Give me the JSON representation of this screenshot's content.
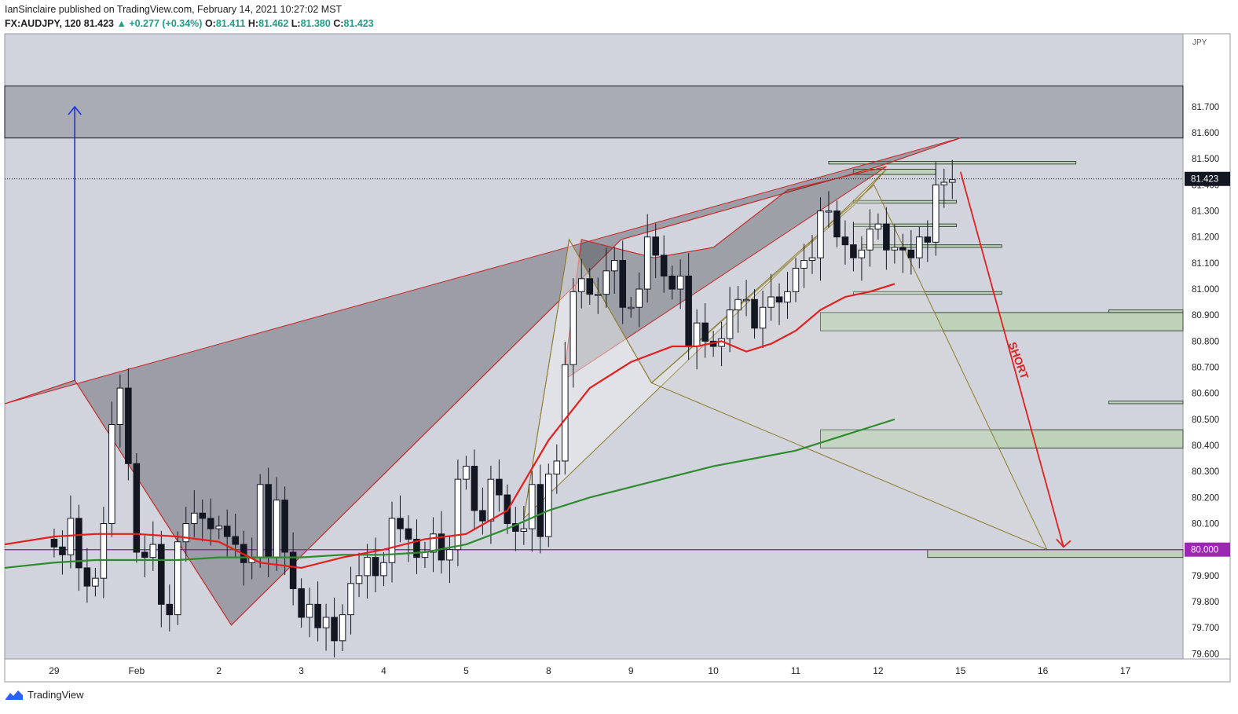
{
  "header": {
    "published": "IanSinclaire published on TradingView.com, February 14, 2021 10:27:02 MST",
    "symbol": "FX:AUDJPY, 120",
    "last": "81.423",
    "arrow": "▲",
    "change": "+0.277 (+0.34%)",
    "o_label": "O:",
    "o": "81.411",
    "h_label": "H:",
    "h": "81.462",
    "l_label": "L:",
    "l": "81.380",
    "c_label": "C:",
    "c": "81.423"
  },
  "footer": {
    "brand": "TradingView",
    "logo_icon": "tradingview-logo-icon"
  },
  "colors": {
    "background": "#d1d4dc",
    "up_candle": "#ffffff",
    "down_candle": "#131722",
    "ema_fast": "#e31f1f",
    "ema_slow": "#2e8b2e",
    "level_line": "#9c27b0",
    "target_arrow": "#e31f1f",
    "up_arrow": "#1a33e6",
    "zone_fill": "#b9d1b1"
  },
  "chart_data": {
    "type": "candlestick",
    "symbol": "FX:AUDJPY",
    "timeframe": "120",
    "ylabel": "JPY",
    "ylim": [
      79.58,
      81.98
    ],
    "yticks": [
      79.6,
      79.7,
      79.8,
      79.9,
      80.1,
      80.2,
      80.3,
      80.4,
      80.5,
      80.6,
      80.7,
      80.8,
      80.9,
      81.0,
      81.1,
      81.2,
      81.3,
      81.4,
      81.5,
      81.6,
      81.7
    ],
    "ytick_labels": [
      "79.600",
      "79.700",
      "79.800",
      "79.900",
      "80.100",
      "80.200",
      "80.300",
      "80.400",
      "80.500",
      "80.600",
      "80.700",
      "80.800",
      "80.900",
      "81.000",
      "81.100",
      "81.200",
      "81.300",
      "81.400",
      "81.500",
      "81.600",
      "81.700"
    ],
    "xlim": [
      -6,
      137
    ],
    "x_ticks": [
      {
        "label": "29",
        "x": 0
      },
      {
        "label": "Feb",
        "x": 10
      },
      {
        "label": "2",
        "x": 20
      },
      {
        "label": "3",
        "x": 30
      },
      {
        "label": "4",
        "x": 40
      },
      {
        "label": "5",
        "x": 50
      },
      {
        "label": "8",
        "x": 60
      },
      {
        "label": "9",
        "x": 70
      },
      {
        "label": "10",
        "x": 80
      },
      {
        "label": "11",
        "x": 90
      },
      {
        "label": "12",
        "x": 100
      },
      {
        "label": "15",
        "x": 110
      },
      {
        "label": "16",
        "x": 120
      },
      {
        "label": "17",
        "x": 130
      }
    ],
    "last_price": 81.423,
    "last_price_label": "81.423",
    "level": 80.0,
    "level_label": "80.000",
    "short_label": "SHORT",
    "candles_close": [
      80.01,
      79.98,
      80.12,
      79.93,
      79.86,
      79.89,
      80.1,
      80.48,
      80.62,
      80.33,
      79.99,
      79.97,
      80.02,
      79.79,
      79.75,
      80.03,
      80.1,
      80.14,
      80.12,
      80.08,
      80.09,
      80.05,
      80.02,
      79.95,
      79.97,
      80.25,
      79.97,
      80.19,
      79.99,
      79.85,
      79.74,
      79.79,
      79.7,
      79.74,
      79.65,
      79.75,
      79.87,
      79.9,
      79.97,
      79.9,
      79.95,
      80.12,
      80.08,
      80.04,
      79.97,
      79.99,
      80.06,
      79.96,
      80.0,
      80.27,
      80.32,
      80.15,
      80.11,
      80.27,
      80.21,
      80.1,
      80.07,
      80.08,
      80.25,
      80.05,
      80.29,
      80.34,
      80.71,
      80.99,
      81.04,
      80.98,
      80.98,
      81.07,
      81.11,
      80.93,
      80.93,
      81.0,
      81.2,
      81.13,
      81.05,
      81.0,
      81.05,
      80.78,
      80.87,
      80.8,
      80.78,
      80.81,
      80.92,
      80.96,
      80.96,
      80.85,
      80.93,
      80.97,
      80.95,
      80.99,
      81.08,
      81.11,
      81.12,
      81.3,
      81.3,
      81.2,
      81.17,
      81.12,
      81.15,
      81.23,
      81.25,
      81.15,
      81.16,
      81.15,
      81.12,
      81.2,
      81.18,
      81.4,
      81.41,
      81.42
    ],
    "ema_fast_points": [
      [
        -6,
        80.02
      ],
      [
        0,
        80.05
      ],
      [
        5,
        80.06
      ],
      [
        10,
        80.06
      ],
      [
        15,
        80.05
      ],
      [
        20,
        80.03
      ],
      [
        25,
        79.95
      ],
      [
        30,
        79.93
      ],
      [
        35,
        79.97
      ],
      [
        40,
        80.0
      ],
      [
        45,
        80.04
      ],
      [
        50,
        80.06
      ],
      [
        55,
        80.15
      ],
      [
        60,
        80.42
      ],
      [
        65,
        80.62
      ],
      [
        70,
        80.72
      ],
      [
        75,
        80.78
      ],
      [
        78,
        80.78
      ],
      [
        81,
        80.8
      ],
      [
        84,
        80.76
      ],
      [
        87,
        80.79
      ],
      [
        90,
        80.84
      ],
      [
        93,
        80.92
      ],
      [
        96,
        80.97
      ],
      [
        99,
        80.99
      ],
      [
        102,
        81.02
      ]
    ],
    "ema_slow_points": [
      [
        -6,
        79.93
      ],
      [
        0,
        79.95
      ],
      [
        5,
        79.96
      ],
      [
        10,
        79.96
      ],
      [
        15,
        79.96
      ],
      [
        20,
        79.97
      ],
      [
        25,
        79.97
      ],
      [
        30,
        79.97
      ],
      [
        35,
        79.98
      ],
      [
        40,
        79.98
      ],
      [
        45,
        79.99
      ],
      [
        50,
        80.02
      ],
      [
        55,
        80.08
      ],
      [
        60,
        80.15
      ],
      [
        65,
        80.2
      ],
      [
        70,
        80.24
      ],
      [
        75,
        80.28
      ],
      [
        80,
        80.32
      ],
      [
        85,
        80.35
      ],
      [
        90,
        80.38
      ],
      [
        95,
        80.43
      ],
      [
        98,
        80.46
      ],
      [
        102,
        80.5
      ]
    ],
    "zones": [
      {
        "x0": -6,
        "x1": 137,
        "y0": 81.58,
        "y1": 81.78
      },
      {
        "x0": 93,
        "x1": 137,
        "y0": 80.84,
        "y1": 80.91
      },
      {
        "x0": 93,
        "x1": 137,
        "y0": 80.39,
        "y1": 80.46
      },
      {
        "x0": 106,
        "x1": 137,
        "y0": 79.97,
        "y1": 80.0
      },
      {
        "x0": 97,
        "x1": 107,
        "y0": 81.44,
        "y1": 81.46
      },
      {
        "x0": 97,
        "x1": 109.5,
        "y0": 81.33,
        "y1": 81.34
      },
      {
        "x0": 97,
        "x1": 109.5,
        "y0": 81.24,
        "y1": 81.25
      },
      {
        "x0": 98,
        "x1": 115,
        "y0": 81.16,
        "y1": 81.17
      },
      {
        "x0": 97,
        "x1": 115,
        "y0": 80.98,
        "y1": 80.99
      },
      {
        "x0": 128,
        "x1": 137,
        "y0": 80.91,
        "y1": 80.92
      },
      {
        "x0": 128,
        "x1": 137,
        "y0": 80.56,
        "y1": 80.57
      },
      {
        "x0": 94,
        "x1": 124,
        "y0": 81.48,
        "y1": 81.49
      }
    ],
    "patterns": [
      {
        "points": [
          [
            -6,
            80.56
          ],
          [
            2.5,
            80.65
          ],
          [
            21.5,
            79.71
          ],
          [
            68.8,
            81.19
          ],
          [
            100,
            81.47
          ],
          [
            110,
            81.58
          ]
        ]
      },
      {
        "points": [
          [
            61.8,
            80.65
          ],
          [
            64,
            81.19
          ],
          [
            72.8,
            81.12
          ],
          [
            80,
            81.16
          ],
          [
            89,
            81.38
          ],
          [
            101,
            81.47
          ]
        ]
      },
      {
        "points": [
          [
            57,
            80.12
          ],
          [
            62.5,
            81.19
          ],
          [
            72.5,
            80.64
          ],
          [
            97,
            81.32
          ],
          [
            101,
            81.46
          ]
        ]
      }
    ]
  }
}
